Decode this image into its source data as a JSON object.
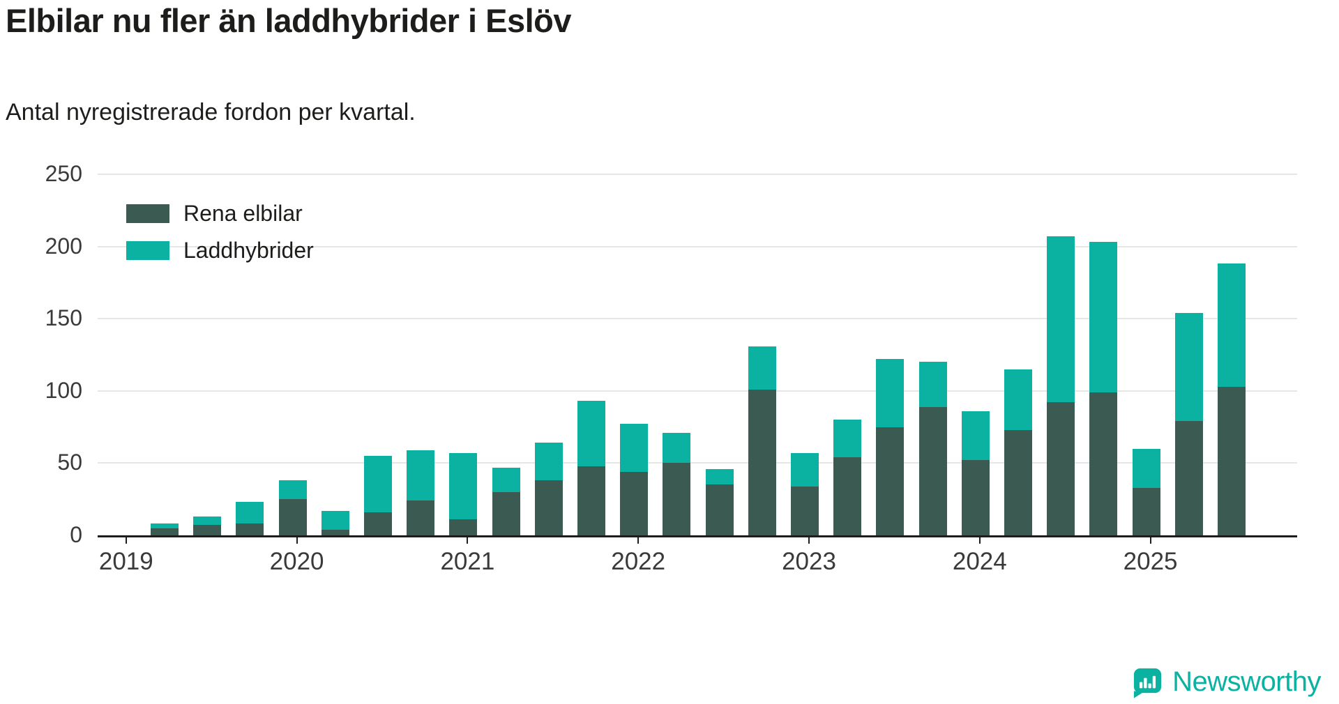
{
  "title": "Elbilar nu fler än laddhybrider i Eslöv",
  "subtitle": "Antal nyregistrerade fordon per kvartal.",
  "branding": {
    "name": "Newsworthy",
    "color": "#0cb2a1"
  },
  "chart_data": {
    "type": "bar",
    "stacked": true,
    "title": "Elbilar nu fler än laddhybrider i Eslöv",
    "subtitle": "Antal nyregistrerade fordon per kvartal.",
    "xlabel": "",
    "ylabel": "",
    "ylim": [
      0,
      250
    ],
    "yticks": [
      0,
      50,
      100,
      150,
      200,
      250
    ],
    "xticks": [
      "2019",
      "2020",
      "2021",
      "2022",
      "2023",
      "2024",
      "2025"
    ],
    "grid": true,
    "legend_position": "top-left",
    "x": [
      "2019 Q2",
      "2019 Q3",
      "2019 Q4",
      "2020 Q1",
      "2020 Q2",
      "2020 Q3",
      "2020 Q4",
      "2021 Q1",
      "2021 Q2",
      "2021 Q3",
      "2021 Q4",
      "2022 Q1",
      "2022 Q2",
      "2022 Q3",
      "2022 Q4",
      "2023 Q1",
      "2023 Q2",
      "2023 Q3",
      "2023 Q4",
      "2024 Q1",
      "2024 Q2",
      "2024 Q3",
      "2024 Q4",
      "2025 Q1",
      "2025 Q2",
      "2025 Q3"
    ],
    "series": [
      {
        "name": "Rena elbilar",
        "color": "#3b5a52",
        "values": [
          5,
          7,
          8,
          25,
          4,
          16,
          24,
          11,
          30,
          38,
          48,
          44,
          50,
          35,
          101,
          34,
          54,
          75,
          89,
          52,
          73,
          92,
          99,
          33,
          79,
          103
        ]
      },
      {
        "name": "Laddhybrider",
        "color": "#0cb2a1",
        "values": [
          3,
          6,
          15,
          13,
          13,
          39,
          35,
          46,
          17,
          26,
          45,
          33,
          21,
          11,
          30,
          23,
          26,
          47,
          31,
          34,
          42,
          115,
          104,
          27,
          75,
          85
        ]
      }
    ]
  }
}
